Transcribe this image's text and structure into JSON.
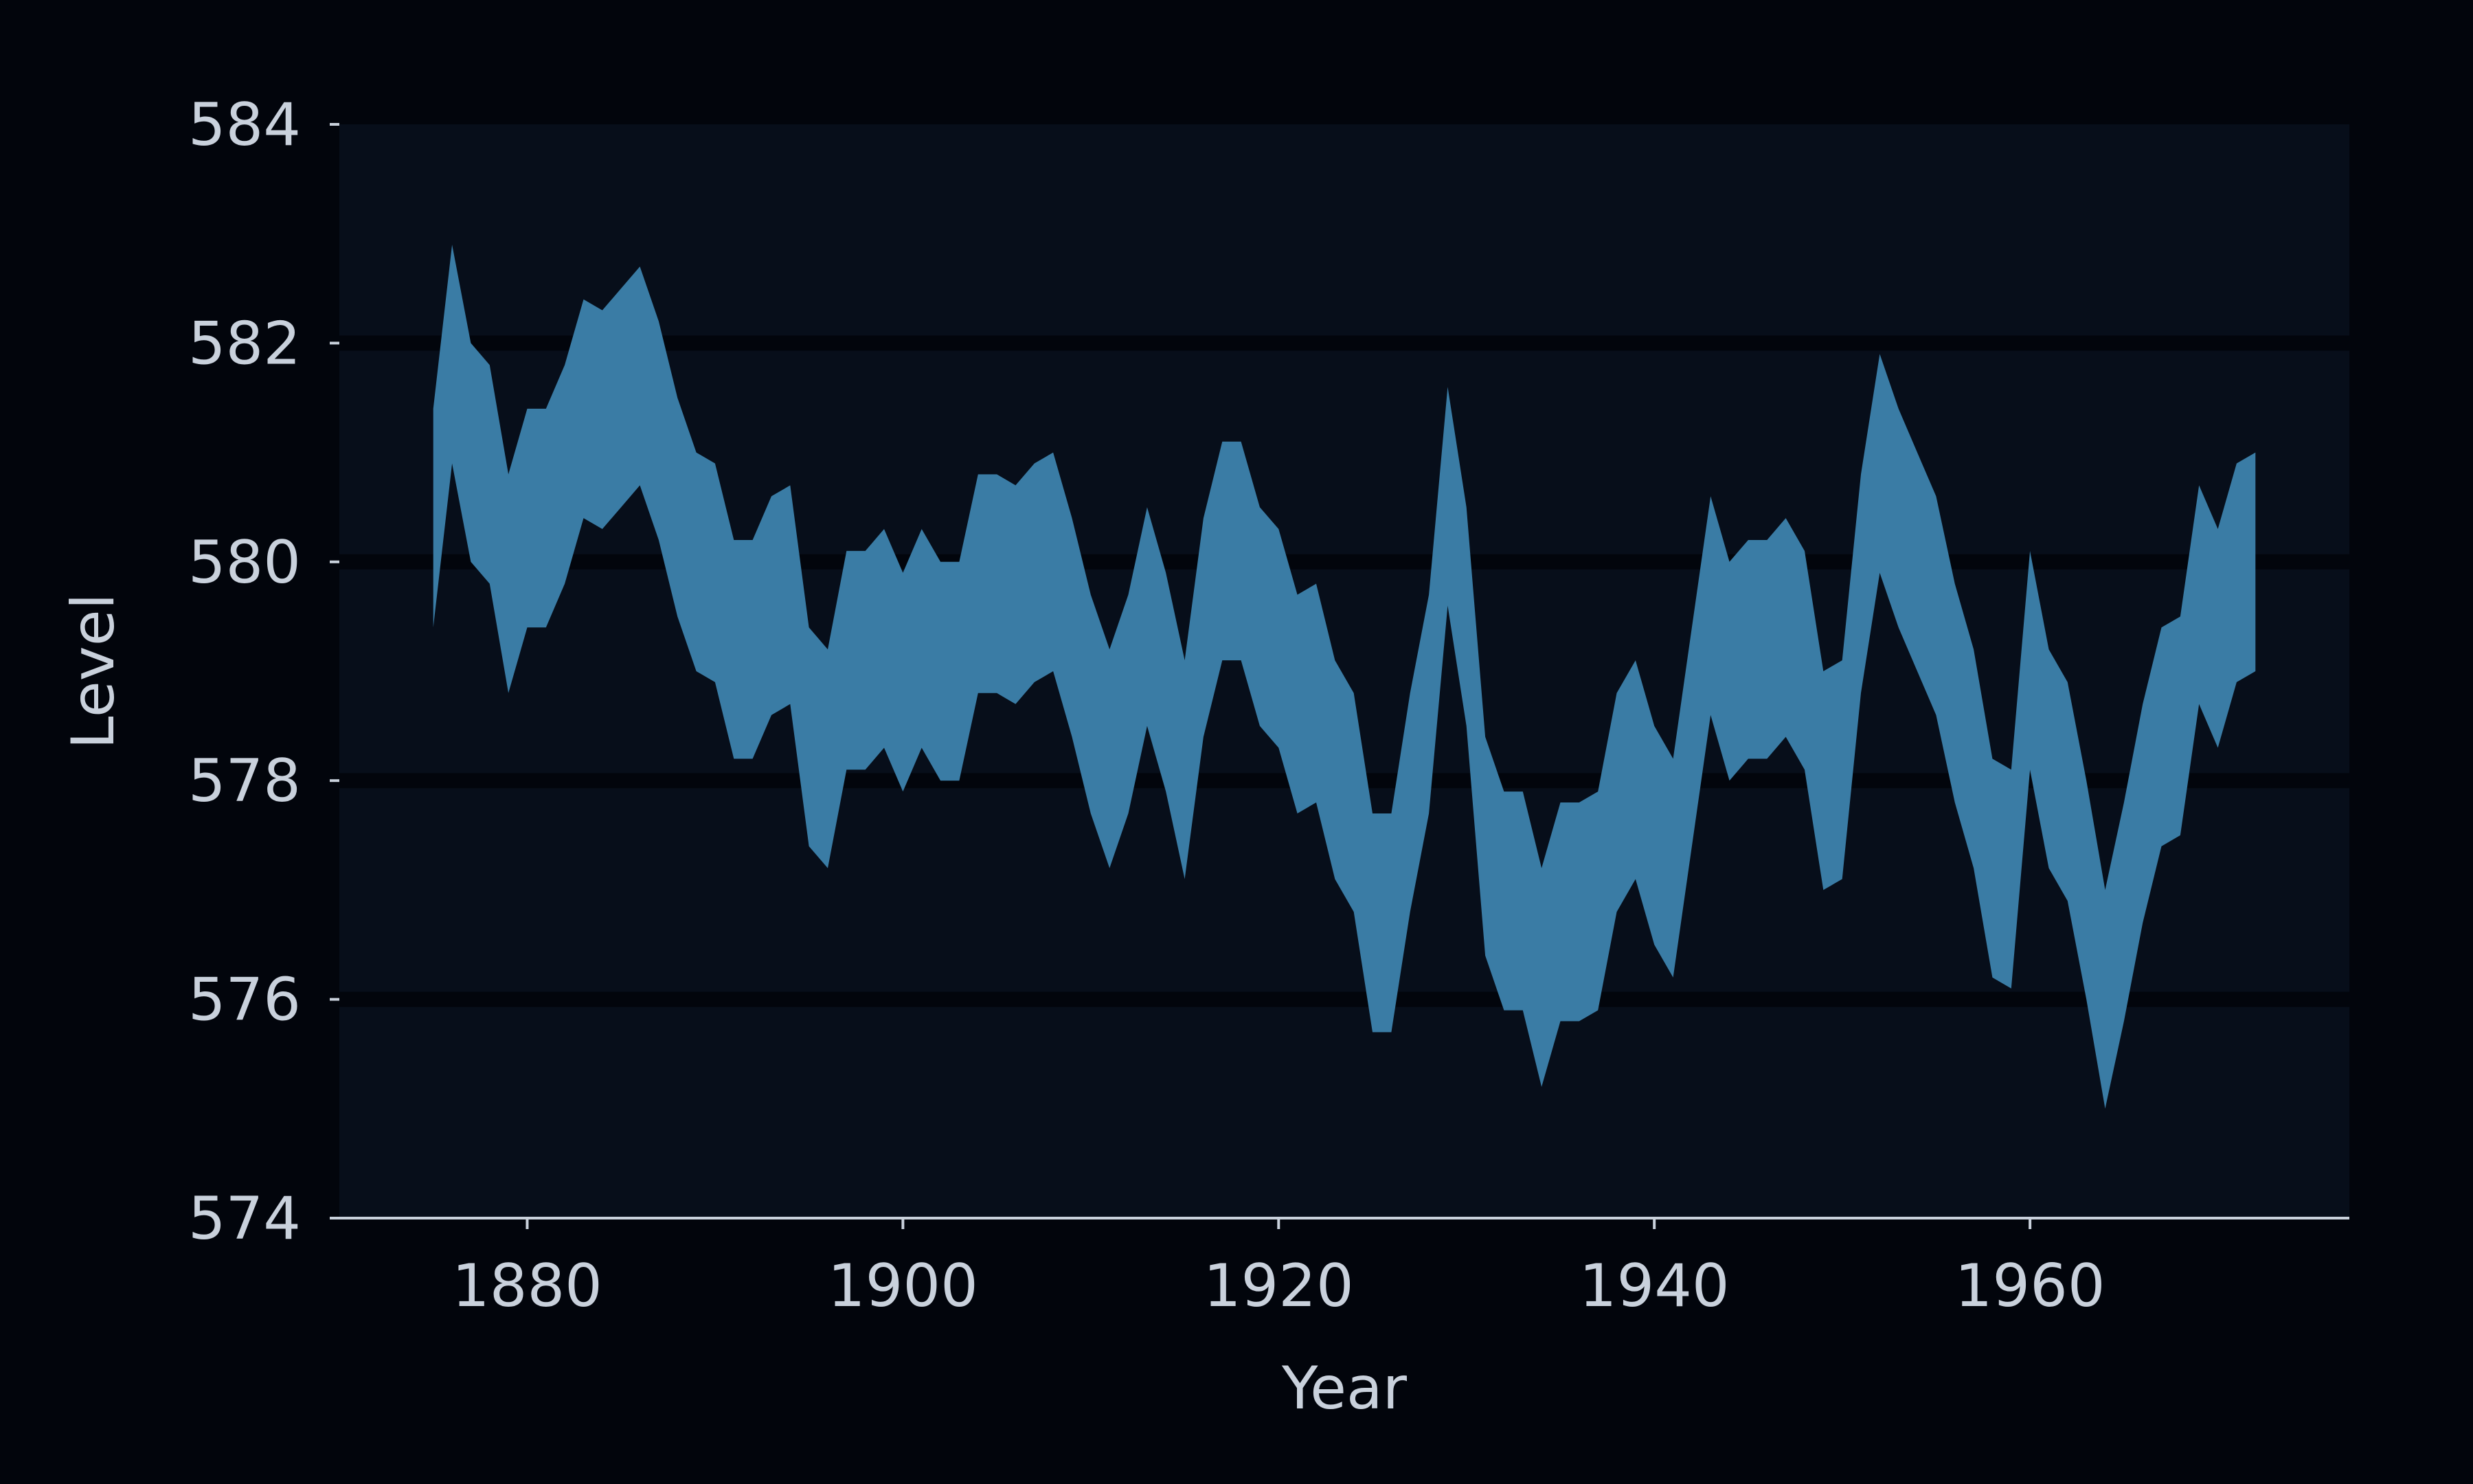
{
  "colors": {
    "background": "#02050c",
    "plot_background": "#070e1a",
    "band_fill": "#3a7ca5",
    "gridline": "#02050c",
    "axis": "#c9d1dc",
    "text": "#c9d1dc"
  },
  "chart_data": {
    "type": "area",
    "subtype": "band (fill between lower and upper)",
    "title": "",
    "xlabel": "Year",
    "ylabel": "Level",
    "xlim": [
      1870,
      1977
    ],
    "ylim": [
      574,
      584
    ],
    "xticks": [
      1880,
      1900,
      1920,
      1940,
      1960
    ],
    "yticks": [
      574,
      576,
      578,
      580,
      582,
      584
    ],
    "grid": "horizontal",
    "legend": "none",
    "x": [
      1875,
      1876,
      1877,
      1878,
      1879,
      1880,
      1881,
      1882,
      1883,
      1884,
      1885,
      1886,
      1887,
      1888,
      1889,
      1890,
      1891,
      1892,
      1893,
      1894,
      1895,
      1896,
      1897,
      1898,
      1899,
      1900,
      1901,
      1902,
      1903,
      1904,
      1905,
      1906,
      1907,
      1908,
      1909,
      1910,
      1911,
      1912,
      1913,
      1914,
      1915,
      1916,
      1917,
      1918,
      1919,
      1920,
      1921,
      1922,
      1923,
      1924,
      1925,
      1926,
      1927,
      1928,
      1929,
      1930,
      1931,
      1932,
      1933,
      1934,
      1935,
      1936,
      1937,
      1938,
      1939,
      1940,
      1941,
      1942,
      1943,
      1944,
      1945,
      1946,
      1947,
      1948,
      1949,
      1950,
      1951,
      1952,
      1953,
      1954,
      1955,
      1956,
      1957,
      1958,
      1959,
      1960,
      1961,
      1962,
      1963,
      1964,
      1965,
      1966,
      1967,
      1968,
      1969,
      1970,
      1971,
      1972
    ],
    "series": [
      {
        "role": "upper",
        "values": [
          581.4,
          582.9,
          582.0,
          581.8,
          580.8,
          581.4,
          581.4,
          581.8,
          582.4,
          582.3,
          582.5,
          582.7,
          582.2,
          581.5,
          581.0,
          580.9,
          580.2,
          580.2,
          580.6,
          580.7,
          579.4,
          579.2,
          580.1,
          580.1,
          580.3,
          579.9,
          580.3,
          580.0,
          580.0,
          580.8,
          580.8,
          580.7,
          580.9,
          581.0,
          580.4,
          579.7,
          579.2,
          579.7,
          580.5,
          579.9,
          579.1,
          580.4,
          581.1,
          581.1,
          580.5,
          580.3,
          579.7,
          579.8,
          579.1,
          578.8,
          577.7,
          577.7,
          578.8,
          579.7,
          581.6,
          580.5,
          578.4,
          577.9,
          577.9,
          577.2,
          577.8,
          577.8,
          577.9,
          578.8,
          579.1,
          578.5,
          578.2,
          579.4,
          580.6,
          580.0,
          580.2,
          580.2,
          580.4,
          580.1,
          579.0,
          579.1,
          580.8,
          581.9,
          581.4,
          581.0,
          580.6,
          579.8,
          579.2,
          578.2,
          578.1,
          580.1,
          579.2,
          578.9,
          578.0,
          577.0,
          577.8,
          578.7,
          579.4,
          579.5,
          580.7,
          580.3,
          580.9,
          581.0
        ]
      },
      {
        "role": "lower",
        "values": [
          579.4,
          580.9,
          580.0,
          579.8,
          578.8,
          579.4,
          579.4,
          579.8,
          580.4,
          580.3,
          580.5,
          580.7,
          580.2,
          579.5,
          579.0,
          578.9,
          578.2,
          578.2,
          578.6,
          578.7,
          577.4,
          577.2,
          578.1,
          578.1,
          578.3,
          577.9,
          578.3,
          578.0,
          578.0,
          578.8,
          578.8,
          578.7,
          578.9,
          579.0,
          578.4,
          577.7,
          577.2,
          577.7,
          578.5,
          577.9,
          577.1,
          578.4,
          579.1,
          579.1,
          578.5,
          578.3,
          577.7,
          577.8,
          577.1,
          576.8,
          575.7,
          575.7,
          576.8,
          577.7,
          579.6,
          578.5,
          576.4,
          575.9,
          575.9,
          575.2,
          575.8,
          575.8,
          575.9,
          576.8,
          577.1,
          576.5,
          576.2,
          577.4,
          578.6,
          578.0,
          578.2,
          578.2,
          578.4,
          578.1,
          577.0,
          577.1,
          578.8,
          579.9,
          579.4,
          579.0,
          578.6,
          577.8,
          577.2,
          576.2,
          576.1,
          578.1,
          577.2,
          576.9,
          576.0,
          575.0,
          575.8,
          576.7,
          577.4,
          577.5,
          578.7,
          578.3,
          578.9,
          579.0
        ]
      }
    ]
  }
}
